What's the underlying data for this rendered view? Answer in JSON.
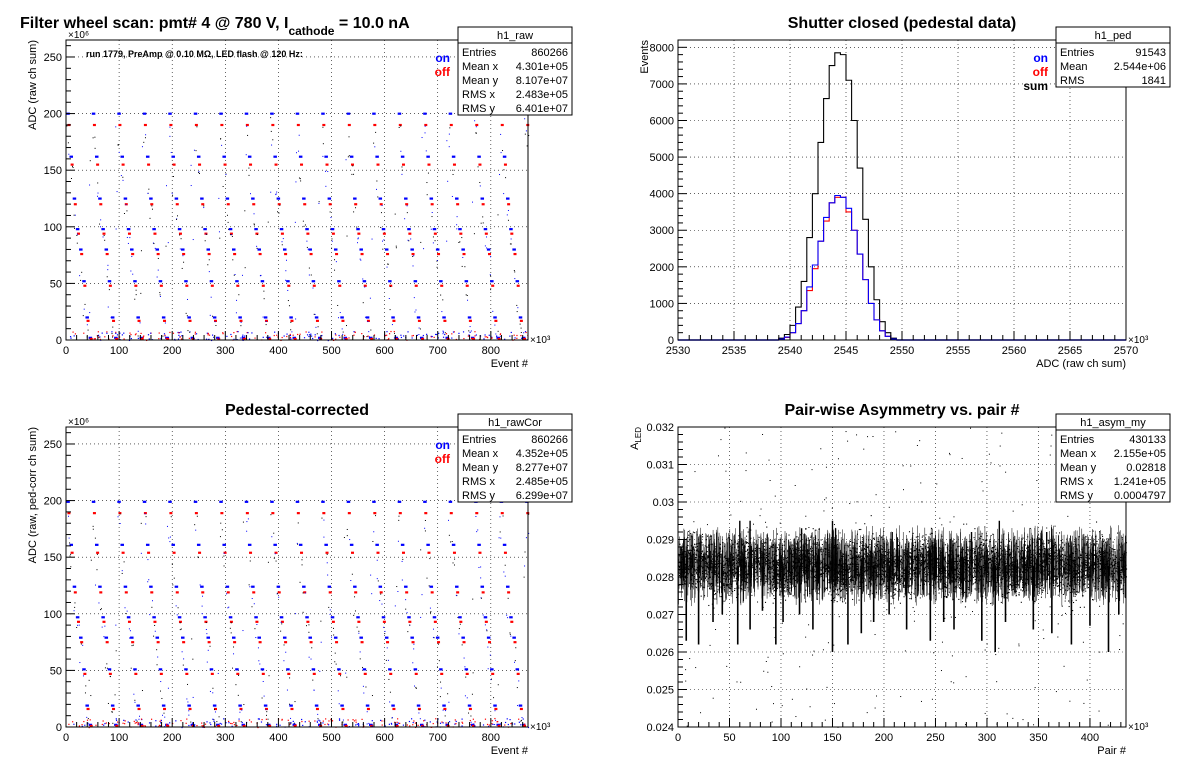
{
  "header": {
    "title_main": "Filter wheel scan: pmt#   4 @   780 V, I",
    "title_sub": "cathode",
    "title_end": " = 10.0 nA"
  },
  "colors": {
    "on": "#0000ff",
    "off": "#ff0000",
    "sum": "#000000"
  },
  "chart_data": [
    {
      "id": "raw",
      "type": "scatter",
      "title": "",
      "xlabel": "Event #",
      "ylabel": "ADC (raw ch sum)",
      "x_multiplier": "×10³",
      "y_multiplier": "×10⁶",
      "xlim": [
        0,
        870
      ],
      "ylim": [
        0,
        265
      ],
      "xticks": [
        0,
        100,
        200,
        300,
        400,
        500,
        600,
        700,
        800
      ],
      "yticks": [
        0,
        50,
        100,
        150,
        200,
        250
      ],
      "grid": true,
      "annotation": "run 1779, PreAmp @ 0.10 MΩ, LED flash @  120 Hz:",
      "legend": [
        {
          "name": "on",
          "color": "#0000ff"
        },
        {
          "name": "off",
          "color": "#ff0000"
        }
      ],
      "stats": {
        "name": "h1_raw",
        "rows": [
          [
            "Entries",
            "860266"
          ],
          [
            "Mean x",
            "4.301e+05"
          ],
          [
            "Mean y",
            "8.107e+07"
          ],
          [
            "RMS x",
            "2.483e+05"
          ],
          [
            "RMS y",
            "6.401e+07"
          ]
        ]
      },
      "bands": {
        "on": [
          200,
          162,
          125,
          98,
          80,
          52,
          20,
          2
        ],
        "off": [
          190,
          155,
          120,
          94,
          76,
          48,
          17,
          1
        ]
      },
      "period": 48
    },
    {
      "id": "ped",
      "type": "histogram",
      "title": "Shutter closed (pedestal data)",
      "xlabel": "ADC (raw ch sum)",
      "ylabel": "Events",
      "x_multiplier": "×10³",
      "xlim": [
        2530,
        2570
      ],
      "ylim": [
        0,
        8200
      ],
      "xticks": [
        2530,
        2535,
        2540,
        2545,
        2550,
        2555,
        2560,
        2565,
        2570
      ],
      "yticks": [
        0,
        1000,
        2000,
        3000,
        4000,
        5000,
        6000,
        7000,
        8000
      ],
      "grid": true,
      "legend": [
        {
          "name": "on",
          "color": "#0000ff"
        },
        {
          "name": "off",
          "color": "#ff0000"
        },
        {
          "name": "sum",
          "color": "#000000"
        }
      ],
      "stats": {
        "name": "h1_ped",
        "rows": [
          [
            "Entries",
            "91543"
          ],
          [
            "Mean",
            "2.544e+06"
          ],
          [
            "RMS",
            "1841"
          ]
        ]
      },
      "bin_edges_start": 2539.0,
      "bin_width": 0.5,
      "sum": [
        50,
        150,
        400,
        900,
        1600,
        2800,
        4000,
        5400,
        6600,
        7500,
        7850,
        7800,
        7100,
        6000,
        4700,
        3300,
        2000,
        1100,
        500,
        200,
        50
      ],
      "on": [
        25,
        80,
        200,
        450,
        800,
        1450,
        2050,
        2700,
        3350,
        3750,
        3950,
        3900,
        3600,
        3000,
        2350,
        1650,
        1000,
        550,
        250,
        100,
        25
      ],
      "off": [
        25,
        70,
        200,
        450,
        800,
        1350,
        1950,
        2700,
        3250,
        3750,
        3900,
        3900,
        3500,
        3000,
        2350,
        1650,
        1000,
        550,
        250,
        100,
        25
      ]
    },
    {
      "id": "rawCor",
      "type": "scatter",
      "title": "Pedestal-corrected",
      "xlabel": "Event #",
      "ylabel": "ADC (raw, ped-corr ch sum)",
      "x_multiplier": "×10³",
      "y_multiplier": "×10⁶",
      "xlim": [
        0,
        870
      ],
      "ylim": [
        0,
        265
      ],
      "xticks": [
        0,
        100,
        200,
        300,
        400,
        500,
        600,
        700,
        800
      ],
      "yticks": [
        0,
        50,
        100,
        150,
        200,
        250
      ],
      "grid": true,
      "legend": [
        {
          "name": "on",
          "color": "#0000ff"
        },
        {
          "name": "off",
          "color": "#ff0000"
        }
      ],
      "stats": {
        "name": "h1_rawCor",
        "rows": [
          [
            "Entries",
            "860266"
          ],
          [
            "Mean x",
            "4.352e+05"
          ],
          [
            "Mean y",
            "8.277e+07"
          ],
          [
            "RMS x",
            "2.485e+05"
          ],
          [
            "RMS y",
            "6.299e+07"
          ]
        ]
      },
      "bands": {
        "on": [
          199,
          161,
          124,
          97,
          79,
          51,
          19,
          2
        ],
        "off": [
          189,
          154,
          119,
          93,
          75,
          47,
          16,
          1
        ]
      },
      "period": 48
    },
    {
      "id": "asym",
      "type": "scatter",
      "title": "Pair-wise Asymmetry vs. pair #",
      "xlabel": "Pair #",
      "ylabel": "A",
      "ylabel_sub": "LED",
      "x_multiplier": "×10³",
      "xlim": [
        0,
        435
      ],
      "ylim": [
        0.024,
        0.032
      ],
      "xticks": [
        0,
        50,
        100,
        150,
        200,
        250,
        300,
        350,
        400
      ],
      "yticks": [
        0.024,
        0.025,
        0.026,
        0.027,
        0.028,
        0.029,
        0.03,
        0.031,
        0.032
      ],
      "ytick_labels": [
        "0.024",
        "0.025",
        "0.026",
        "0.027",
        "0.028",
        "0.029",
        "0.03",
        "0.031",
        "0.032"
      ],
      "grid": true,
      "stats": {
        "name": "h1_asym_my",
        "rows": [
          [
            "Entries",
            "430133"
          ],
          [
            "Mean x",
            "2.155e+05"
          ],
          [
            "Mean y",
            "0.02818"
          ],
          [
            "RMS x",
            "1.241e+05"
          ],
          [
            "RMS y",
            "0.0004797"
          ]
        ]
      },
      "band_center": 0.0283,
      "band_halfwidth": 0.0006,
      "dips": [
        [
          8,
          0.0263
        ],
        [
          20,
          0.0262
        ],
        [
          34,
          0.0268
        ],
        [
          43,
          0.027
        ],
        [
          58,
          0.0262
        ],
        [
          70,
          0.0266
        ],
        [
          82,
          0.0271
        ],
        [
          95,
          0.0262
        ],
        [
          102,
          0.0268
        ],
        [
          118,
          0.027
        ],
        [
          131,
          0.0266
        ],
        [
          150,
          0.026
        ],
        [
          165,
          0.0262
        ],
        [
          178,
          0.0265
        ],
        [
          190,
          0.0268
        ],
        [
          205,
          0.027
        ],
        [
          222,
          0.0266
        ],
        [
          245,
          0.0263
        ],
        [
          258,
          0.0268
        ],
        [
          268,
          0.0266
        ],
        [
          295,
          0.0263
        ],
        [
          308,
          0.026
        ],
        [
          318,
          0.0268
        ],
        [
          345,
          0.0266
        ],
        [
          363,
          0.0265
        ],
        [
          382,
          0.0262
        ],
        [
          400,
          0.0267
        ],
        [
          418,
          0.026
        ],
        [
          428,
          0.027
        ]
      ],
      "spikes": [
        [
          60,
          0.0295
        ],
        [
          70,
          0.0295
        ],
        [
          120,
          0.0293
        ],
        [
          150,
          0.0295
        ],
        [
          153,
          0.0293
        ],
        [
          208,
          0.0292
        ],
        [
          285,
          0.0292
        ],
        [
          312,
          0.0295
        ],
        [
          358,
          0.0292
        ]
      ]
    }
  ]
}
